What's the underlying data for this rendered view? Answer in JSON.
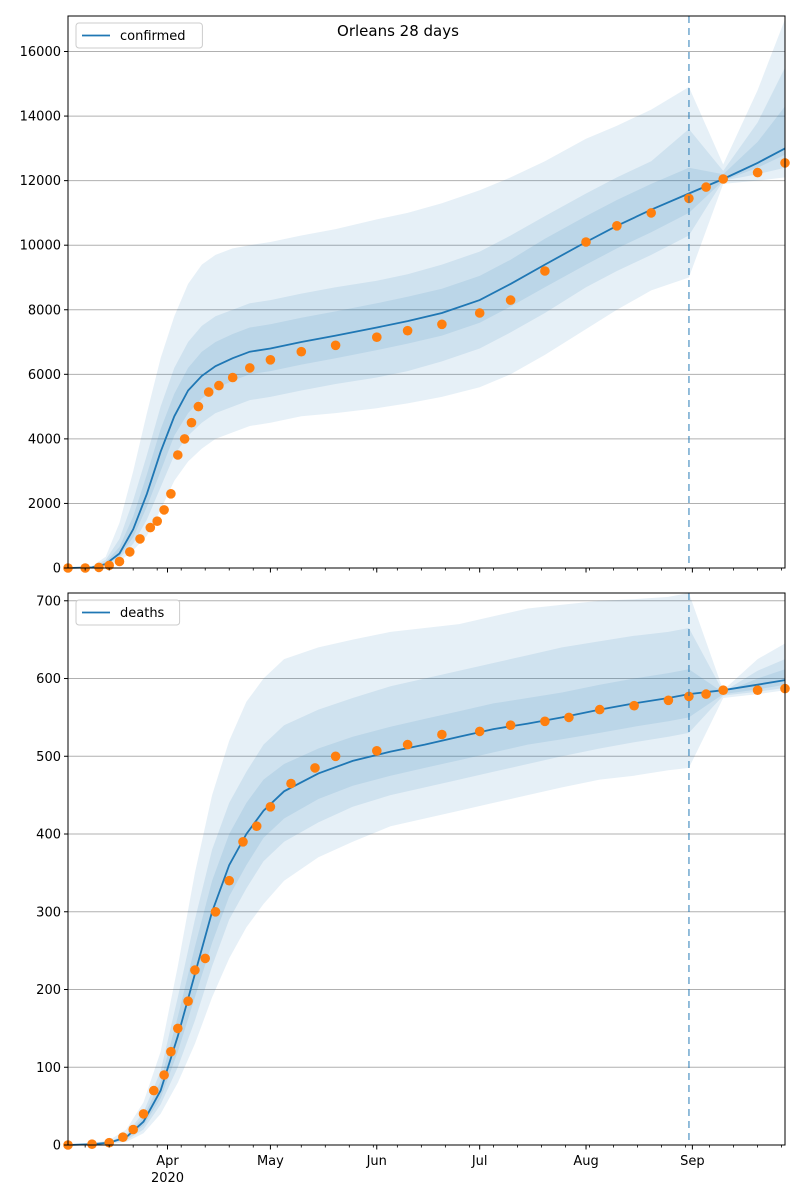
{
  "title": "Orleans 28 days",
  "colors": {
    "line": "#1f77b4",
    "band": "#1f77b4",
    "dots": "#ff7f0e",
    "grid": "#b0b0b0",
    "vline": "#1f77b4"
  },
  "chart_data": [
    {
      "type": "line",
      "name": "confirmed-panel",
      "legend": "confirmed",
      "legend_position": "top-left",
      "grid": "horizontal",
      "ylim": [
        0,
        17100
      ],
      "yticks": [
        0,
        2000,
        4000,
        6000,
        8000,
        10000,
        12000,
        14000,
        16000
      ],
      "ytick_labels": [
        "0",
        "2000",
        "4000",
        "6000",
        "8000",
        "10000",
        "12000",
        "14000",
        "16000"
      ],
      "xlim": [
        "2020-03-03",
        "2020-09-28"
      ],
      "xtick_major": [
        "2020-04-01",
        "2020-05-01",
        "2020-06-01",
        "2020-07-01",
        "2020-08-01",
        "2020-09-01"
      ],
      "xtick_labels": [
        "Apr",
        "May",
        "Jun",
        "Jul",
        "Aug",
        "Sep"
      ],
      "year_label": "2020",
      "forecast_start": "2020-08-31",
      "model": {
        "x": [
          "2020-03-03",
          "2020-03-10",
          "2020-03-14",
          "2020-03-18",
          "2020-03-22",
          "2020-03-26",
          "2020-03-30",
          "2020-04-03",
          "2020-04-07",
          "2020-04-11",
          "2020-04-15",
          "2020-04-20",
          "2020-04-25",
          "2020-05-01",
          "2020-05-10",
          "2020-05-20",
          "2020-06-01",
          "2020-06-10",
          "2020-06-20",
          "2020-07-01",
          "2020-07-10",
          "2020-07-20",
          "2020-08-01",
          "2020-08-10",
          "2020-08-20",
          "2020-08-31",
          "2020-09-10",
          "2020-09-20",
          "2020-09-28"
        ],
        "y": [
          0,
          20,
          120,
          450,
          1200,
          2300,
          3600,
          4700,
          5500,
          5950,
          6250,
          6500,
          6700,
          6800,
          7000,
          7200,
          7450,
          7650,
          7900,
          8300,
          8800,
          9400,
          10100,
          10600,
          11100,
          11600,
          12050,
          12550,
          13000
        ],
        "bands": [
          {
            "lower": [
              0,
              0,
              60,
              200,
              550,
              1000,
              1800,
              2700,
              3300,
              3700,
              4000,
              4200,
              4400,
              4500,
              4700,
              4800,
              4950,
              5100,
              5300,
              5600,
              6000,
              6600,
              7400,
              8000,
              8600,
              9000,
              11900,
              12000,
              12100
            ],
            "upper": [
              0,
              60,
              350,
              1400,
              3000,
              4800,
              6500,
              7800,
              8800,
              9400,
              9700,
              9900,
              10000,
              10100,
              10300,
              10500,
              10800,
              11000,
              11300,
              11700,
              12100,
              12600,
              13300,
              13700,
              14200,
              14900,
              12500,
              14800,
              17000
            ]
          },
          {
            "lower": [
              0,
              5,
              90,
              300,
              750,
              1500,
              2500,
              3500,
              4100,
              4500,
              4800,
              5000,
              5200,
              5300,
              5500,
              5700,
              5900,
              6100,
              6400,
              6800,
              7300,
              7900,
              8700,
              9200,
              9700,
              10300,
              12000,
              12200,
              12400
            ],
            "upper": [
              0,
              40,
              250,
              900,
              2100,
              3500,
              5000,
              6200,
              7000,
              7500,
              7800,
              8000,
              8200,
              8300,
              8500,
              8700,
              8900,
              9100,
              9400,
              9800,
              10300,
              10900,
              11600,
              12100,
              12600,
              13600,
              12300,
              13800,
              15500
            ]
          },
          {
            "lower": [
              0,
              10,
              100,
              360,
              950,
              1900,
              3000,
              4100,
              4800,
              5250,
              5550,
              5800,
              6000,
              6100,
              6300,
              6500,
              6750,
              6950,
              7200,
              7600,
              8100,
              8700,
              9400,
              9900,
              10400,
              11000,
              12000,
              12400,
              12800
            ],
            "upper": [
              0,
              30,
              180,
              650,
              1600,
              2900,
              4300,
              5400,
              6200,
              6700,
              7000,
              7250,
              7450,
              7550,
              7750,
              7950,
              8200,
              8400,
              8650,
              9050,
              9550,
              10200,
              10900,
              11400,
              11900,
              12400,
              12200,
              13200,
              14300
            ]
          }
        ]
      },
      "observed": {
        "x": [
          "2020-03-03",
          "2020-03-08",
          "2020-03-12",
          "2020-03-15",
          "2020-03-18",
          "2020-03-21",
          "2020-03-24",
          "2020-03-27",
          "2020-03-29",
          "2020-03-31",
          "2020-04-02",
          "2020-04-04",
          "2020-04-06",
          "2020-04-08",
          "2020-04-10",
          "2020-04-13",
          "2020-04-16",
          "2020-04-20",
          "2020-04-25",
          "2020-05-01",
          "2020-05-10",
          "2020-05-20",
          "2020-06-01",
          "2020-06-10",
          "2020-06-20",
          "2020-07-01",
          "2020-07-10",
          "2020-07-20",
          "2020-08-01",
          "2020-08-10",
          "2020-08-20",
          "2020-08-31",
          "2020-09-05",
          "2020-09-10",
          "2020-09-20",
          "2020-09-28"
        ],
        "y": [
          0,
          0,
          20,
          80,
          200,
          500,
          900,
          1250,
          1450,
          1800,
          2300,
          3500,
          4000,
          4500,
          5000,
          5450,
          5650,
          5900,
          6200,
          6450,
          6700,
          6900,
          7150,
          7350,
          7550,
          7900,
          8300,
          9200,
          10100,
          10600,
          11000,
          11450,
          11800,
          12050,
          12250,
          12550
        ]
      }
    },
    {
      "type": "line",
      "name": "deaths-panel",
      "legend": "deaths",
      "legend_position": "top-left",
      "grid": "horizontal",
      "ylim": [
        0,
        710
      ],
      "yticks": [
        0,
        100,
        200,
        300,
        400,
        500,
        600,
        700
      ],
      "ytick_labels": [
        "0",
        "100",
        "200",
        "300",
        "400",
        "500",
        "600",
        "700"
      ],
      "xlim": [
        "2020-03-03",
        "2020-09-28"
      ],
      "xtick_major": [
        "2020-04-01",
        "2020-05-01",
        "2020-06-01",
        "2020-07-01",
        "2020-08-01",
        "2020-09-01"
      ],
      "xtick_labels": [
        "Apr",
        "May",
        "Jun",
        "Jul",
        "Aug",
        "Sep"
      ],
      "year_label": "2020",
      "forecast_start": "2020-08-31",
      "model": {
        "x": [
          "2020-03-03",
          "2020-03-10",
          "2020-03-15",
          "2020-03-20",
          "2020-03-25",
          "2020-03-30",
          "2020-04-04",
          "2020-04-09",
          "2020-04-14",
          "2020-04-19",
          "2020-04-24",
          "2020-04-29",
          "2020-05-05",
          "2020-05-15",
          "2020-05-25",
          "2020-06-05",
          "2020-06-15",
          "2020-06-25",
          "2020-07-05",
          "2020-07-15",
          "2020-07-25",
          "2020-08-05",
          "2020-08-15",
          "2020-08-25",
          "2020-08-31",
          "2020-09-10",
          "2020-09-20",
          "2020-09-28"
        ],
        "y": [
          0,
          1,
          3,
          10,
          30,
          70,
          140,
          220,
          300,
          360,
          400,
          430,
          455,
          478,
          494,
          506,
          515,
          525,
          535,
          542,
          550,
          560,
          568,
          575,
          580,
          585,
          592,
          598
        ],
        "bands": [
          {
            "lower": [
              0,
              0,
              1,
              4,
              15,
              40,
              80,
              130,
              190,
              240,
              280,
              310,
              340,
              370,
              390,
              410,
              420,
              430,
              440,
              450,
              460,
              470,
              475,
              482,
              485,
              575,
              580,
              585
            ],
            "upper": [
              0,
              2,
              6,
              20,
              55,
              120,
              230,
              350,
              450,
              520,
              570,
              600,
              625,
              640,
              650,
              660,
              665,
              670,
              680,
              690,
              695,
              700,
              702,
              705,
              710,
              585,
              625,
              645
            ]
          },
          {
            "lower": [
              0,
              0,
              2,
              6,
              20,
              52,
              100,
              160,
              230,
              290,
              330,
              365,
              390,
              415,
              435,
              450,
              460,
              470,
              480,
              490,
              500,
              510,
              518,
              525,
              530,
              578,
              583,
              588
            ],
            "upper": [
              0,
              1,
              4,
              14,
              42,
              95,
              190,
              290,
              380,
              440,
              480,
              515,
              540,
              560,
              575,
              590,
              600,
              610,
              620,
              630,
              640,
              648,
              655,
              660,
              665,
              583,
              610,
              625
            ]
          },
          {
            "lower": [
              0,
              1,
              2,
              8,
              25,
              60,
              120,
              190,
              260,
              320,
              360,
              395,
              420,
              445,
              462,
              475,
              485,
              495,
              505,
              515,
              522,
              530,
              538,
              545,
              550,
              580,
              586,
              592
            ],
            "upper": [
              0,
              1,
              4,
              12,
              36,
              82,
              165,
              255,
              340,
              400,
              440,
              470,
              490,
              510,
              525,
              538,
              548,
              558,
              568,
              575,
              582,
              592,
              600,
              607,
              612,
              582,
              600,
              612
            ]
          }
        ]
      },
      "observed": {
        "x": [
          "2020-03-03",
          "2020-03-10",
          "2020-03-15",
          "2020-03-19",
          "2020-03-22",
          "2020-03-25",
          "2020-03-28",
          "2020-03-31",
          "2020-04-02",
          "2020-04-04",
          "2020-04-07",
          "2020-04-09",
          "2020-04-12",
          "2020-04-15",
          "2020-04-19",
          "2020-04-23",
          "2020-04-27",
          "2020-05-01",
          "2020-05-07",
          "2020-05-14",
          "2020-05-20",
          "2020-06-01",
          "2020-06-10",
          "2020-06-20",
          "2020-07-01",
          "2020-07-10",
          "2020-07-20",
          "2020-07-27",
          "2020-08-05",
          "2020-08-15",
          "2020-08-25",
          "2020-08-31",
          "2020-09-05",
          "2020-09-10",
          "2020-09-20",
          "2020-09-28"
        ],
        "y": [
          0,
          1,
          3,
          10,
          20,
          40,
          70,
          90,
          120,
          150,
          185,
          225,
          240,
          300,
          340,
          390,
          410,
          435,
          465,
          485,
          500,
          507,
          515,
          528,
          532,
          540,
          545,
          550,
          560,
          565,
          572,
          577,
          580,
          585,
          585,
          587
        ]
      }
    }
  ]
}
